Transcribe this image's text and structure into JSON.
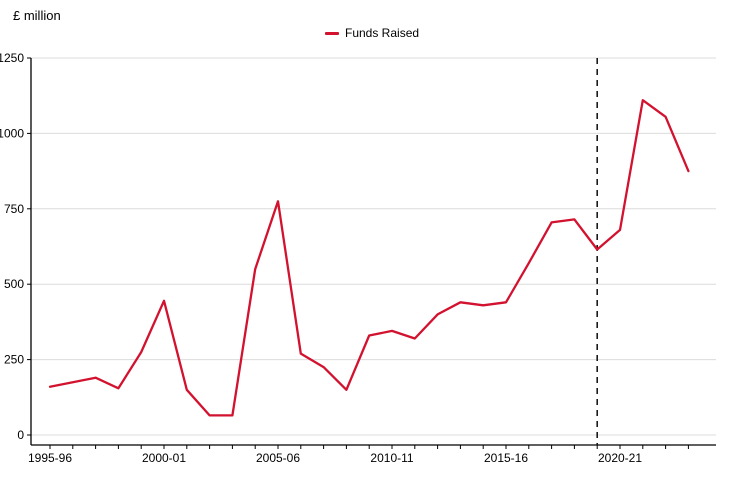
{
  "page": {
    "background_color": "#ffffff"
  },
  "chart": {
    "title": "£ million",
    "legend": {
      "label": "Funds Raised",
      "marker_color": "#d2122e"
    }
  },
  "chart_data": {
    "type": "line",
    "title": "£ million",
    "xlabel": "",
    "ylabel": "£ million",
    "grid": "horizontal",
    "grid_color": "#dcdcdc",
    "axis_color": "#000000",
    "legend_position": "top-center",
    "ylim": [
      0,
      1250
    ],
    "yticks": [
      0,
      250,
      500,
      750,
      1000,
      1250
    ],
    "xticks_labeled": [
      "1995-96",
      "2000-01",
      "2005-06",
      "2010-11",
      "2015-16",
      "2020-21"
    ],
    "categories": [
      "1995-96",
      "1996-97",
      "1997-98",
      "1998-99",
      "1999-00",
      "2000-01",
      "2001-02",
      "2002-03",
      "2003-04",
      "2004-05",
      "2005-06",
      "2006-07",
      "2007-08",
      "2008-09",
      "2009-10",
      "2010-11",
      "2011-12",
      "2012-13",
      "2013-14",
      "2014-15",
      "2015-16",
      "2016-17",
      "2017-18",
      "2018-19",
      "2019-20",
      "2020-21",
      "2021-22",
      "2022-23",
      "2023-24"
    ],
    "series": [
      {
        "name": "Funds Raised",
        "color": "#d2122e",
        "values": [
          160,
          175,
          190,
          155,
          275,
          445,
          150,
          65,
          65,
          550,
          775,
          270,
          225,
          150,
          330,
          345,
          320,
          400,
          440,
          430,
          440,
          570,
          705,
          715,
          615,
          680,
          1110,
          1055,
          875
        ]
      }
    ],
    "annotations": [
      {
        "type": "vline",
        "x": "2019-20",
        "style": "dashed",
        "color": "#1a1a1a",
        "note": "vertical dashed divider before latest years"
      }
    ]
  }
}
